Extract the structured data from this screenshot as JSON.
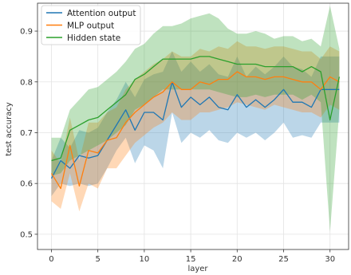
{
  "chart_data": {
    "type": "line",
    "title": "",
    "xlabel": "layer",
    "ylabel": "test accuracy",
    "xlim": [
      -1.5,
      32
    ],
    "ylim": [
      0.47,
      0.955
    ],
    "xticks": [
      0,
      5,
      10,
      15,
      20,
      25,
      30
    ],
    "yticks": [
      0.5,
      0.6,
      0.7,
      0.8,
      0.9
    ],
    "grid": true,
    "legend_position": "top-left",
    "x": [
      0,
      1,
      2,
      3,
      4,
      5,
      6,
      7,
      8,
      9,
      10,
      11,
      12,
      13,
      14,
      15,
      16,
      17,
      18,
      19,
      20,
      21,
      22,
      23,
      24,
      25,
      26,
      27,
      28,
      29,
      30,
      31
    ],
    "series": [
      {
        "name": "Attention output",
        "color": "#1f77b4",
        "values": [
          0.61,
          0.645,
          0.63,
          0.655,
          0.65,
          0.655,
          0.685,
          0.715,
          0.745,
          0.705,
          0.74,
          0.74,
          0.725,
          0.8,
          0.75,
          0.77,
          0.755,
          0.77,
          0.75,
          0.745,
          0.775,
          0.75,
          0.765,
          0.75,
          0.765,
          0.785,
          0.76,
          0.76,
          0.75,
          0.785,
          0.785,
          0.785
        ],
        "band_lower": [
          0.575,
          0.6,
          0.595,
          0.6,
          0.595,
          0.6,
          0.63,
          0.665,
          0.69,
          0.64,
          0.675,
          0.665,
          0.63,
          0.74,
          0.68,
          0.7,
          0.69,
          0.705,
          0.685,
          0.68,
          0.7,
          0.69,
          0.7,
          0.685,
          0.7,
          0.72,
          0.69,
          0.695,
          0.69,
          0.72,
          0.72,
          0.72
        ],
        "band_upper": [
          0.645,
          0.69,
          0.67,
          0.705,
          0.7,
          0.71,
          0.74,
          0.765,
          0.8,
          0.77,
          0.805,
          0.815,
          0.82,
          0.86,
          0.82,
          0.84,
          0.82,
          0.835,
          0.815,
          0.81,
          0.85,
          0.81,
          0.83,
          0.815,
          0.83,
          0.85,
          0.83,
          0.825,
          0.81,
          0.85,
          0.85,
          0.85
        ]
      },
      {
        "name": "MLP output",
        "color": "#ff7f0e",
        "values": [
          0.62,
          0.59,
          0.675,
          0.595,
          0.665,
          0.66,
          0.685,
          0.69,
          0.72,
          0.74,
          0.755,
          0.77,
          0.78,
          0.8,
          0.785,
          0.785,
          0.8,
          0.795,
          0.805,
          0.805,
          0.82,
          0.81,
          0.81,
          0.805,
          0.81,
          0.81,
          0.805,
          0.8,
          0.8,
          0.785,
          0.81,
          0.8
        ],
        "band_lower": [
          0.565,
          0.55,
          0.62,
          0.545,
          0.6,
          0.59,
          0.63,
          0.63,
          0.655,
          0.68,
          0.695,
          0.71,
          0.72,
          0.74,
          0.725,
          0.725,
          0.74,
          0.74,
          0.745,
          0.75,
          0.76,
          0.755,
          0.75,
          0.745,
          0.755,
          0.75,
          0.745,
          0.74,
          0.74,
          0.73,
          0.755,
          0.745
        ],
        "band_upper": [
          0.665,
          0.64,
          0.73,
          0.645,
          0.72,
          0.72,
          0.74,
          0.75,
          0.785,
          0.805,
          0.82,
          0.835,
          0.845,
          0.86,
          0.85,
          0.85,
          0.865,
          0.86,
          0.87,
          0.865,
          0.88,
          0.87,
          0.87,
          0.865,
          0.87,
          0.87,
          0.865,
          0.86,
          0.86,
          0.845,
          0.87,
          0.86
        ]
      },
      {
        "name": "Hidden state",
        "color": "#2ca02c",
        "values": [
          0.645,
          0.65,
          0.705,
          0.715,
          0.725,
          0.73,
          0.745,
          0.76,
          0.775,
          0.805,
          0.815,
          0.83,
          0.845,
          0.845,
          0.845,
          0.845,
          0.85,
          0.85,
          0.845,
          0.84,
          0.835,
          0.835,
          0.835,
          0.83,
          0.83,
          0.83,
          0.83,
          0.82,
          0.83,
          0.82,
          0.725,
          0.81
        ],
        "band_lower": [
          0.615,
          0.62,
          0.645,
          0.655,
          0.665,
          0.675,
          0.685,
          0.7,
          0.715,
          0.745,
          0.755,
          0.77,
          0.785,
          0.785,
          0.785,
          0.785,
          0.785,
          0.785,
          0.78,
          0.775,
          0.77,
          0.77,
          0.775,
          0.77,
          0.775,
          0.775,
          0.775,
          0.765,
          0.775,
          0.76,
          0.505,
          0.745
        ],
        "band_upper": [
          0.69,
          0.69,
          0.745,
          0.765,
          0.785,
          0.79,
          0.805,
          0.82,
          0.84,
          0.865,
          0.875,
          0.895,
          0.91,
          0.91,
          0.915,
          0.925,
          0.93,
          0.935,
          0.925,
          0.905,
          0.895,
          0.895,
          0.9,
          0.895,
          0.885,
          0.89,
          0.89,
          0.88,
          0.885,
          0.87,
          0.95,
          0.865
        ]
      }
    ]
  }
}
